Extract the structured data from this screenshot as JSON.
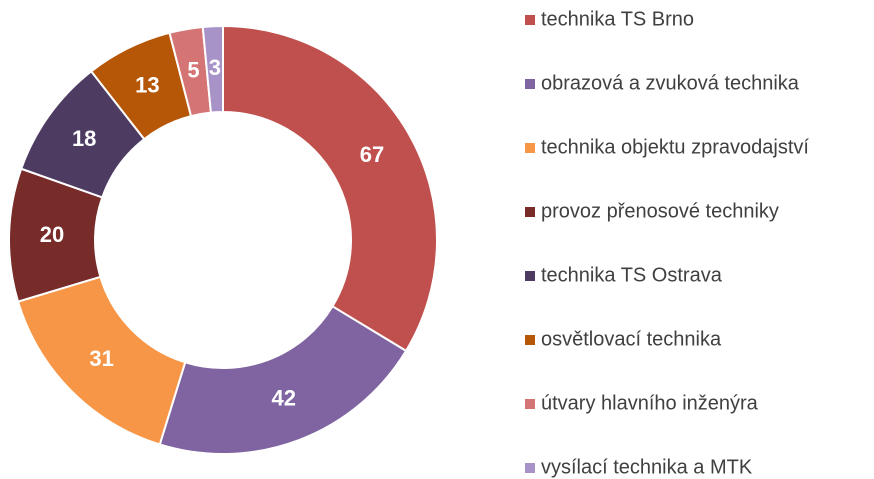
{
  "chart_data": {
    "type": "donut",
    "categories": [
      "technika TS Brno",
      "obrazová a zvuková technika",
      "technika objektu zpravodajství",
      "provoz přenosové techniky",
      "technika TS Ostrava",
      "osvětlovací technika",
      "útvary hlavního inženýra",
      "vysílací technika a MTK"
    ],
    "values": [
      67,
      42,
      31,
      20,
      18,
      13,
      5,
      3
    ],
    "colors": [
      "#c0504d",
      "#8064a2",
      "#f79646",
      "#772c2a",
      "#4d3b62",
      "#b65708",
      "#d47474",
      "#a893c9"
    ],
    "legend": "right"
  }
}
